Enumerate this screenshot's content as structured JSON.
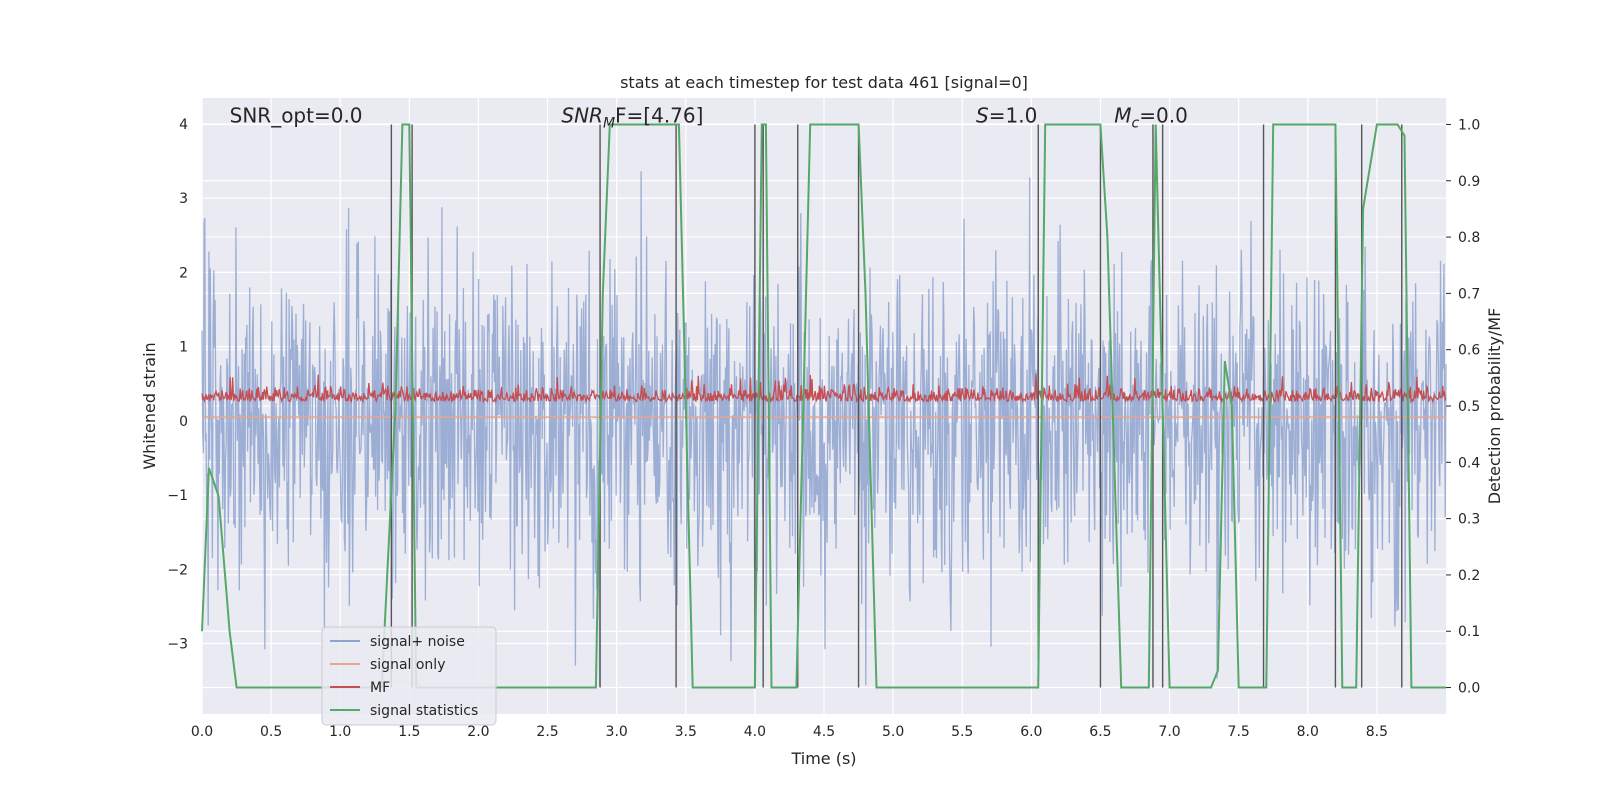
{
  "chart_data": {
    "type": "line",
    "title": "stats at each timestep for test data 461 [signal=0]",
    "xlabel": "Time (s)",
    "ylabel_left": "Whitened strain",
    "ylabel_right": "Detection probability/MF",
    "xlim": [
      0.0,
      9.0
    ],
    "ylim_left": [
      -3.95,
      4.35
    ],
    "ylim_right": [
      -0.047,
      1.047
    ],
    "x_ticks": [
      "0.0",
      "0.5",
      "1.0",
      "1.5",
      "2.0",
      "2.5",
      "3.0",
      "3.5",
      "4.0",
      "4.5",
      "5.0",
      "5.5",
      "6.0",
      "6.5",
      "7.0",
      "7.5",
      "8.0",
      "8.5"
    ],
    "y_ticks_left": [
      "−3",
      "−2",
      "−1",
      "0",
      "1",
      "2",
      "3",
      "4"
    ],
    "y_ticks_right": [
      "0.0",
      "0.1",
      "0.2",
      "0.3",
      "0.4",
      "0.5",
      "0.6",
      "0.7",
      "0.8",
      "0.9",
      "1.0"
    ],
    "grid": true,
    "legend_position": "lower-left",
    "annotations": [
      {
        "text": "SNR_opt=0.0",
        "x": 0.2,
        "y": 4.02
      },
      {
        "prefix": "SNR",
        "sub": "M",
        "suffix": "F=[4.76]",
        "x": 2.6,
        "y": 4.02
      },
      {
        "prefix": "S",
        "sub": "",
        "suffix": "=1.0",
        "x": 5.6,
        "y": 4.02
      },
      {
        "prefix": "M",
        "sub": "c",
        "suffix": "=0.0",
        "x": 6.6,
        "y": 4.02
      }
    ],
    "series": [
      {
        "name": "signal+ noise",
        "axis": "left",
        "color": "#8fa3cf",
        "description_stats": {
          "min": -3.7,
          "max": 3.7,
          "typical_band": [
            -2.5,
            2.5
          ]
        }
      },
      {
        "name": "signal only",
        "axis": "left",
        "color": "#e8a58c",
        "constant_value": 0.05
      },
      {
        "name": "MF",
        "axis": "right",
        "color": "#c44e52",
        "description_stats": {
          "min": 0.49,
          "max": 0.58,
          "mean": 0.52
        }
      },
      {
        "name": "signal statistics",
        "axis": "right",
        "color": "#55a868",
        "x": [
          0.0,
          0.05,
          0.12,
          0.2,
          0.25,
          0.3,
          1.3,
          1.4,
          1.45,
          1.5,
          1.55,
          1.6,
          2.85,
          2.9,
          2.95,
          3.05,
          3.45,
          3.5,
          3.55,
          3.6,
          4.0,
          4.05,
          4.08,
          4.12,
          4.3,
          4.35,
          4.4,
          4.5,
          4.75,
          4.8,
          4.88,
          5.0,
          6.05,
          6.1,
          6.2,
          6.5,
          6.55,
          6.65,
          6.85,
          6.9,
          6.95,
          7.0,
          7.3,
          7.35,
          7.4,
          7.45,
          7.5,
          7.55,
          7.7,
          7.75,
          7.8,
          8.0,
          8.2,
          8.25,
          8.35,
          8.4,
          8.5,
          8.65,
          8.7,
          8.75,
          8.8,
          9.0
        ],
        "y": [
          0.1,
          0.39,
          0.34,
          0.1,
          0.0,
          0.0,
          0.0,
          0.5,
          1.0,
          1.0,
          0.0,
          0.0,
          0.0,
          0.7,
          1.0,
          1.0,
          1.0,
          0.5,
          0.0,
          0.0,
          0.0,
          1.0,
          1.0,
          0.0,
          0.0,
          0.5,
          1.0,
          1.0,
          1.0,
          0.7,
          0.0,
          0.0,
          0.0,
          1.0,
          1.0,
          1.0,
          0.8,
          0.0,
          0.0,
          1.0,
          0.5,
          0.0,
          0.0,
          0.03,
          0.58,
          0.5,
          0.0,
          0.0,
          0.0,
          1.0,
          1.0,
          1.0,
          1.0,
          0.0,
          0.0,
          0.85,
          1.0,
          1.0,
          0.98,
          0.0,
          0.0,
          0.0
        ]
      },
      {
        "name": "",
        "axis": "right",
        "color": "#555555",
        "type": "vlines",
        "x": [
          1.37,
          1.52,
          2.88,
          3.43,
          4.0,
          4.06,
          4.31,
          4.75,
          6.05,
          6.5,
          6.88,
          6.95,
          7.68,
          8.2,
          8.39,
          8.68
        ],
        "ymin": 0.0,
        "ymax": 1.0
      }
    ]
  }
}
